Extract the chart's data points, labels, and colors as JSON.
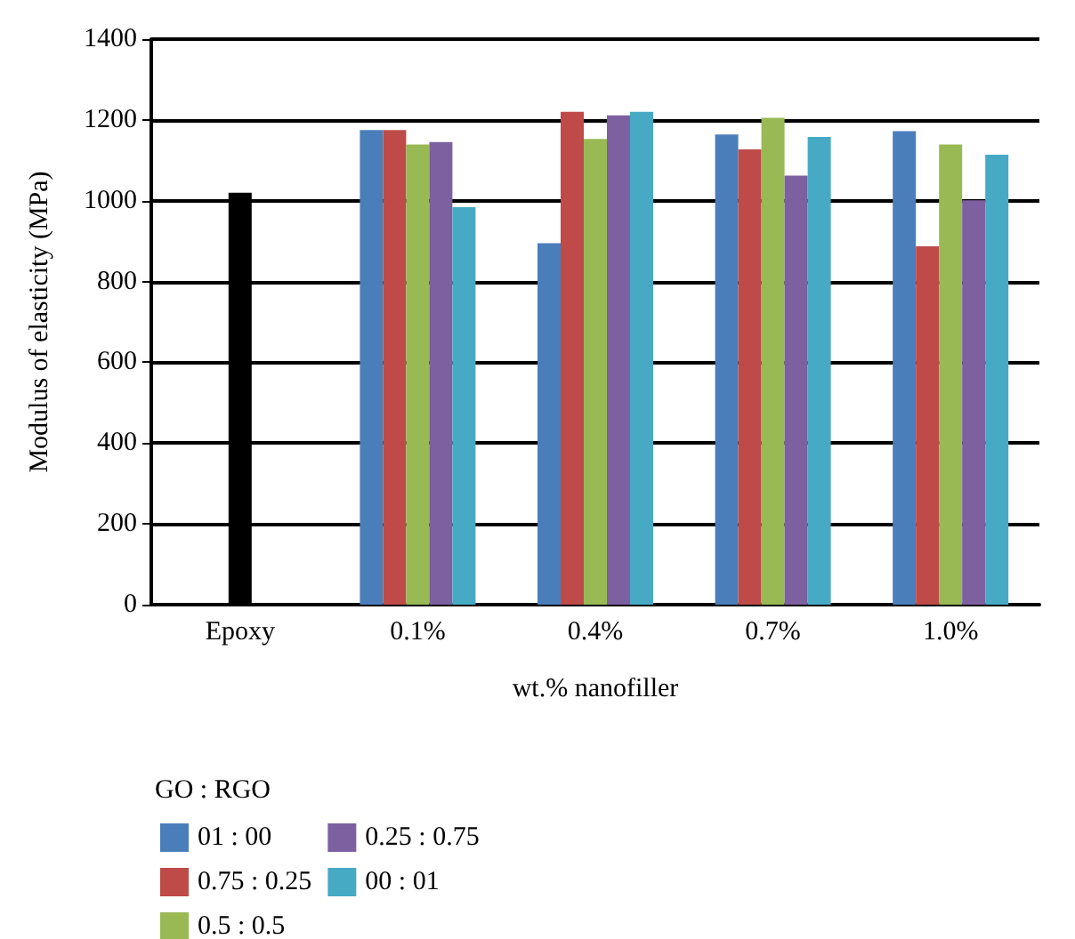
{
  "chart_data": {
    "type": "bar",
    "xlabel": "wt.% nanofiller",
    "ylabel": "Modulus of elasticity (MPa)",
    "legend_title": "GO : RGO",
    "legend": "bottom",
    "grid": "y",
    "ylim": [
      0,
      1400
    ],
    "yticks": [
      0,
      200,
      400,
      600,
      800,
      1000,
      1200,
      1400
    ],
    "categories": [
      "Epoxy",
      "0.1%",
      "0.4%",
      "0.7%",
      "1.0%"
    ],
    "series": [
      {
        "name": null,
        "color": "#000000",
        "values": [
          1020,
          null,
          null,
          null,
          null
        ]
      },
      {
        "name": "01 : 00",
        "color": "#4a7ebb",
        "values": [
          null,
          1175,
          895,
          1164,
          1172
        ]
      },
      {
        "name": "0.75 : 0.25",
        "color": "#be4b48",
        "values": [
          null,
          1175,
          1220,
          1127,
          887
        ]
      },
      {
        "name": "0.5 : 0.5",
        "color": "#98b954",
        "values": [
          null,
          1139,
          1153,
          1205,
          1139
        ]
      },
      {
        "name": "0.25 : 0.75",
        "color": "#7d60a0",
        "values": [
          null,
          1145,
          1211,
          1062,
          1001
        ]
      },
      {
        "name": "00 : 01",
        "color": "#46aac5",
        "values": [
          null,
          984,
          1220,
          1158,
          1114
        ]
      }
    ]
  }
}
